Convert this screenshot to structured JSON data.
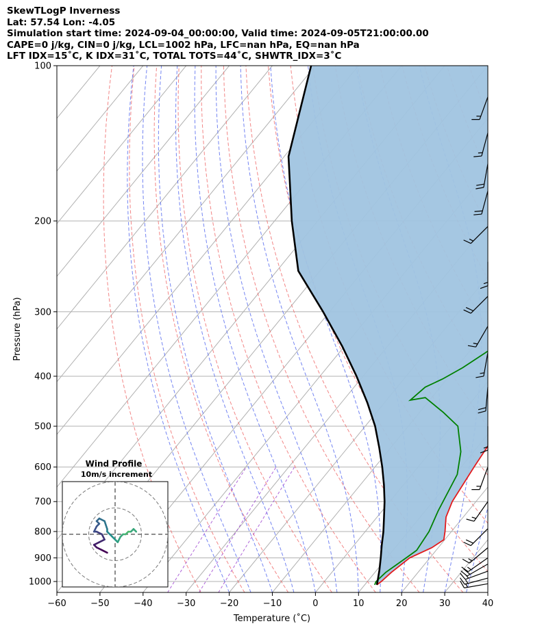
{
  "header": {
    "line1": "SkewTLogP Inverness",
    "line2": "Lat: 57.54   Lon: -4.05",
    "line3": "Simulation start time: 2024-09-04_00:00:00, Valid time: 2024-09-05T21:00:00.00",
    "line4": "CAPE=0 j/kg, CIN=0 j/kg, LCL=1002 hPa, LFC=nan hPa, EQ=nan hPa",
    "line5": "LFT IDX=15˚C, K IDX=31˚C, TOTAL TOTS=44˚C, SHWTR_IDX=3˚C"
  },
  "chart_data": {
    "type": "line",
    "subtype": "skew-t log-p diagram",
    "xlabel": "Temperature (˚C)",
    "ylabel": "Pressure (hPa)",
    "xlim": [
      -60,
      40
    ],
    "ylim": [
      1050,
      100
    ],
    "y_scale": "log",
    "x_ticks": [
      -60,
      -50,
      -40,
      -30,
      -20,
      -10,
      0,
      10,
      20,
      30,
      40
    ],
    "x_tick_labels": [
      "−60",
      "−50",
      "−40",
      "−30",
      "−20",
      "−10",
      "0",
      "10",
      "20",
      "30",
      "40"
    ],
    "y_ticks": [
      1000,
      900,
      800,
      700,
      600,
      500,
      400,
      300,
      200,
      100
    ],
    "y_tick_labels": [
      "1000",
      "900",
      "800",
      "700",
      "600",
      "500",
      "400",
      "300",
      "200",
      "100"
    ],
    "grid": true,
    "colors": {
      "temperature": "#e31a1c",
      "dewpoint": "#008000",
      "parcel": "#000000",
      "shade": "#a0c4e0",
      "isotherm": "#b0b0b0",
      "dry_adiabat": "#f07070",
      "moist_adiabat": "#5a6ef0",
      "mixing_ratio": "#9b3fcf"
    },
    "series": [
      {
        "role": "temperature",
        "points": [
          [
            12.8,
            1015
          ],
          [
            13.2,
            1000
          ],
          [
            13.8,
            960
          ],
          [
            15.3,
            900
          ],
          [
            18.5,
            860
          ],
          [
            19.8,
            830
          ],
          [
            18.5,
            800
          ],
          [
            16.0,
            750
          ],
          [
            14.5,
            700
          ],
          [
            13.0,
            600
          ],
          [
            11.5,
            500
          ],
          [
            9.5,
            440
          ],
          [
            5.0,
            400
          ],
          [
            0.2,
            330
          ],
          [
            -4.0,
            280
          ],
          [
            -7.5,
            245
          ],
          [
            -9.5,
            220
          ],
          [
            -9.8,
            210
          ],
          [
            -8.0,
            200
          ],
          [
            -4.0,
            185
          ],
          [
            -1.5,
            170
          ],
          [
            2.0,
            150
          ],
          [
            5.5,
            130
          ],
          [
            8.5,
            115
          ],
          [
            11.5,
            100
          ]
        ]
      },
      {
        "role": "dewpoint",
        "points": [
          [
            12.3,
            1015
          ],
          [
            12.0,
            1000
          ],
          [
            12.5,
            960
          ],
          [
            14.5,
            900
          ],
          [
            15.5,
            870
          ],
          [
            14.8,
            800
          ],
          [
            13.0,
            730
          ],
          [
            10.5,
            620
          ],
          [
            7.0,
            560
          ],
          [
            1.5,
            500
          ],
          [
            -4.5,
            470
          ],
          [
            -11.5,
            440
          ],
          [
            -14.5,
            445
          ],
          [
            -13.5,
            420
          ],
          [
            -11.0,
            405
          ],
          [
            -8.5,
            385
          ],
          [
            -5.0,
            350
          ],
          [
            -5.5,
            300
          ],
          [
            -7.8,
            270
          ],
          [
            -9.5,
            240
          ],
          [
            -12.5,
            215
          ],
          [
            -15.5,
            205
          ],
          [
            -13.5,
            185
          ],
          [
            -10.5,
            175
          ],
          [
            -10.5,
            165
          ],
          [
            -12.0,
            155
          ],
          [
            -13.0,
            142
          ],
          [
            -11.0,
            130
          ],
          [
            -8.0,
            118
          ],
          [
            -3.5,
            100
          ]
        ]
      },
      {
        "role": "parcel",
        "points": [
          [
            12.8,
            1015
          ],
          [
            12.4,
            1002
          ],
          [
            10.6,
            950
          ],
          [
            8.6,
            900
          ],
          [
            6.4,
            850
          ],
          [
            4.2,
            800
          ],
          [
            1.6,
            750
          ],
          [
            -1.2,
            700
          ],
          [
            -4.5,
            650
          ],
          [
            -8.3,
            600
          ],
          [
            -12.7,
            550
          ],
          [
            -17.7,
            500
          ],
          [
            -24,
            450
          ],
          [
            -31.5,
            400
          ],
          [
            -40.5,
            350
          ],
          [
            -51.5,
            300
          ],
          [
            -65,
            250
          ],
          [
            -76,
            200
          ],
          [
            -89,
            150
          ],
          [
            -101,
            100
          ]
        ]
      }
    ],
    "wind_barbs": [
      {
        "p": 1010,
        "speed_kt": 15,
        "dir_deg": 260
      },
      {
        "p": 985,
        "speed_kt": 15,
        "dir_deg": 255
      },
      {
        "p": 955,
        "speed_kt": 15,
        "dir_deg": 250
      },
      {
        "p": 925,
        "speed_kt": 20,
        "dir_deg": 240
      },
      {
        "p": 900,
        "speed_kt": 15,
        "dir_deg": 235
      },
      {
        "p": 860,
        "speed_kt": 15,
        "dir_deg": 230
      },
      {
        "p": 790,
        "speed_kt": 20,
        "dir_deg": 225
      },
      {
        "p": 700,
        "speed_kt": 15,
        "dir_deg": 215
      },
      {
        "p": 600,
        "speed_kt": 15,
        "dir_deg": 200
      },
      {
        "p": 500,
        "speed_kt": 15,
        "dir_deg": 180
      },
      {
        "p": 420,
        "speed_kt": 20,
        "dir_deg": 185
      },
      {
        "p": 360,
        "speed_kt": 15,
        "dir_deg": 190
      },
      {
        "p": 320,
        "speed_kt": 15,
        "dir_deg": 210
      },
      {
        "p": 280,
        "speed_kt": 20,
        "dir_deg": 225
      },
      {
        "p": 240,
        "speed_kt": 15,
        "dir_deg": 180
      },
      {
        "p": 205,
        "speed_kt": 15,
        "dir_deg": 225
      },
      {
        "p": 175,
        "speed_kt": 20,
        "dir_deg": 195
      },
      {
        "p": 155,
        "speed_kt": 20,
        "dir_deg": 190
      },
      {
        "p": 135,
        "speed_kt": 15,
        "dir_deg": 195
      },
      {
        "p": 115,
        "speed_kt": 15,
        "dir_deg": 200
      }
    ],
    "hodograph": {
      "title": "Wind Profile",
      "subtitle": "10m/s increment",
      "ring_speeds_ms": [
        10,
        20,
        30
      ],
      "extent_ms": 20,
      "points": [
        [
          -3,
          -7
        ],
        [
          -5,
          -6
        ],
        [
          -7,
          -5
        ],
        [
          -8,
          -4
        ],
        [
          -6,
          -3
        ],
        [
          -4,
          -2
        ],
        [
          -5,
          0
        ],
        [
          -7,
          1
        ],
        [
          -8,
          1
        ],
        [
          -7,
          3
        ],
        [
          -6,
          4
        ],
        [
          -7,
          5
        ],
        [
          -6,
          6
        ],
        [
          -4,
          5
        ],
        [
          -3,
          2
        ],
        [
          -3,
          1
        ],
        [
          -2,
          0
        ],
        [
          -1,
          -1
        ],
        [
          0,
          -2
        ],
        [
          1,
          -3
        ],
        [
          2,
          -1
        ],
        [
          3,
          0
        ],
        [
          4,
          0
        ],
        [
          5,
          1
        ],
        [
          6,
          1
        ],
        [
          7,
          2
        ],
        [
          8,
          1
        ]
      ]
    }
  }
}
